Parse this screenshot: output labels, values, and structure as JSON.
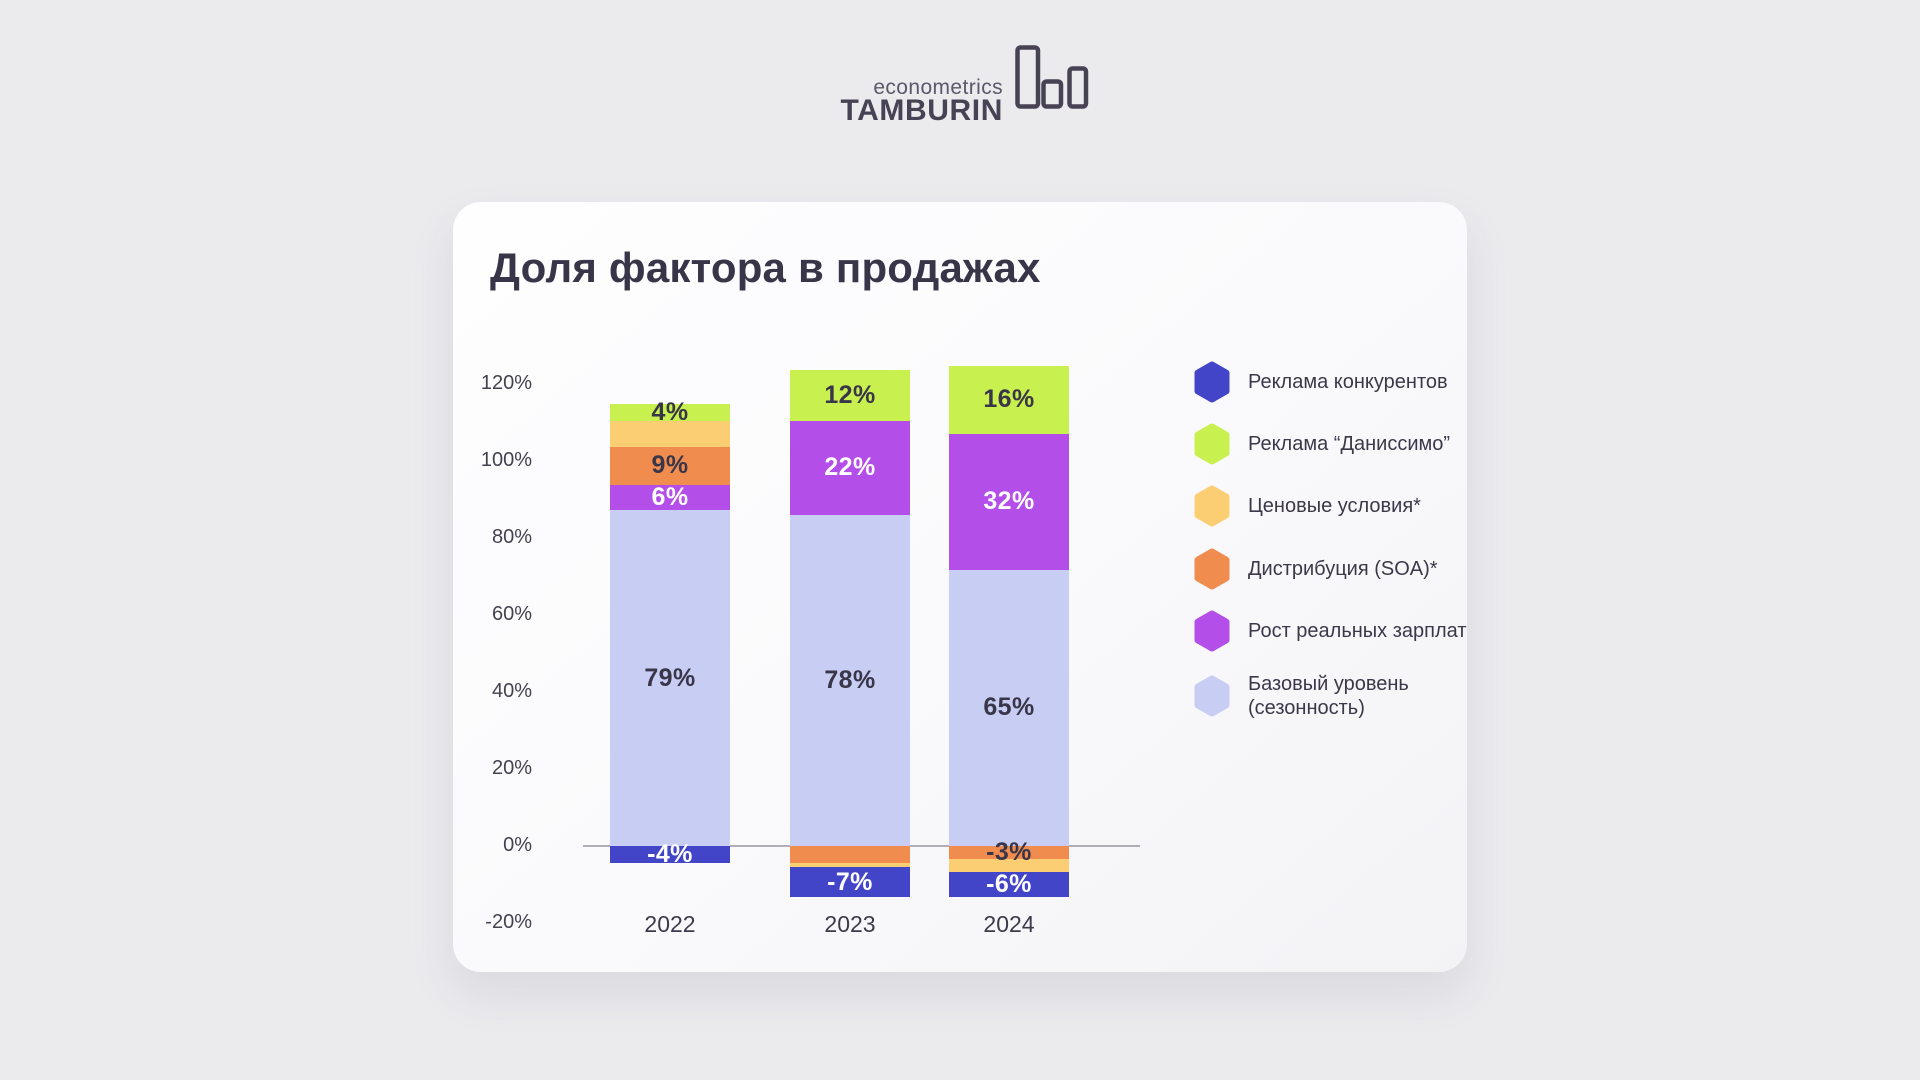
{
  "logo": {
    "tagline": "econometrics",
    "brand": "TAMBURIN"
  },
  "card": {
    "title": "Доля фактора в продажах"
  },
  "chart_data": {
    "type": "bar",
    "stacked": true,
    "title": "Доля фактора в продажах",
    "categories": [
      "2022",
      "2023",
      "2024"
    ],
    "xlabel": "",
    "ylabel": "",
    "y_axis": {
      "unit": "%",
      "min": -20,
      "max": 120,
      "ticks": [
        "120%",
        "100%",
        "80%",
        "60%",
        "40%",
        "20%",
        "0%",
        "-20%"
      ]
    },
    "grid": "zero-line-only",
    "legend_position": "right",
    "series": [
      {
        "name": "Реклама конкурентов",
        "color": "#4345c9",
        "label_text_color": "#ffffff",
        "values": [
          -4,
          -7,
          -6
        ],
        "labels": [
          "-4%",
          "-7%",
          "-6%"
        ]
      },
      {
        "name": "Реклама “Даниссимо”",
        "color": "#c8f04e",
        "label_text_color": "#3a3649",
        "values": [
          4,
          12,
          16
        ],
        "labels": [
          "4%",
          "12%",
          "16%"
        ]
      },
      {
        "name": "Ценовые условия*",
        "color": "#fbce74",
        "label_text_color": "#3a3649",
        "values": [
          6,
          -1,
          -3
        ],
        "labels": [
          "",
          "",
          ""
        ]
      },
      {
        "name": "Дистрибуция (SOA)*",
        "color": "#f18c4f",
        "label_text_color": "#3a3649",
        "values": [
          9,
          -4,
          -3
        ],
        "labels": [
          "9%",
          "",
          "-3%"
        ]
      },
      {
        "name": "Рост реальных зарплат",
        "color": "#b44ee8",
        "label_text_color": "#ffffff",
        "values": [
          6,
          22,
          32
        ],
        "labels": [
          "6%",
          "22%",
          "32%"
        ]
      },
      {
        "name": "Базовый уровень (сезонность)",
        "color": "#c8cdf4",
        "label_text_color": "#3a3649",
        "values": [
          79,
          78,
          65
        ],
        "labels": [
          "79%",
          "78%",
          "65%"
        ]
      }
    ]
  }
}
